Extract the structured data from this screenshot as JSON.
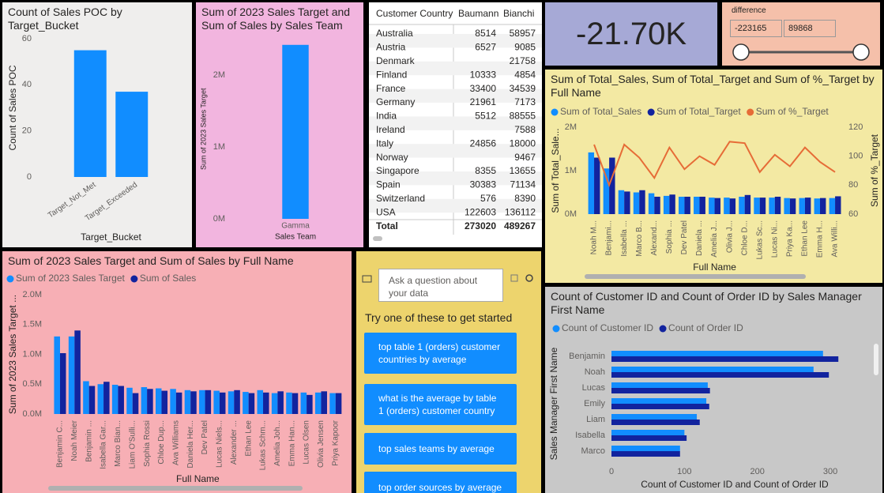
{
  "chart_data": [
    {
      "type": "bar",
      "title": "Count of Sales POC by Target_Bucket",
      "categories": [
        "Target_Not_Met",
        "Target_Exceeded"
      ],
      "values": [
        55,
        37
      ],
      "color": "#118dff",
      "ylim": [
        0,
        60
      ],
      "yticks": [
        0,
        20,
        40,
        60
      ],
      "xlabel": "Target_Bucket",
      "ylabel": "Count of Sales POC"
    },
    {
      "type": "bar",
      "title": "Sum of 2023 Sales Target and Sum of Sales by Sales Team",
      "categories": [
        "Gamma"
      ],
      "values": [
        2420000
      ],
      "color": "#118dff",
      "ylim": [
        0,
        2500000
      ],
      "yticks": [
        {
          "value": 0,
          "label": "0M"
        },
        {
          "value": 1000000,
          "label": "1M"
        },
        {
          "value": 2000000,
          "label": "2M"
        }
      ],
      "xlabel": "Sales Team",
      "ylabel": "Sum of 2023 Sales Target"
    },
    {
      "type": "bar",
      "title": "Sum of Total_Sales, Sum of Total_Target and Sum of %_Target by Full Name",
      "categories": [
        "Noah M...",
        "Benjami...",
        "Isabella ...",
        "Marco B...",
        "Alexand...",
        "Sophia ...",
        "Dev Patel",
        "Daniela ...",
        "Amelia J...",
        "Olivia J...",
        "Chloe D...",
        "Lukas Sc...",
        "Lucas Ni...",
        "Priya Ka...",
        "Ethan Lee",
        "Emma H...",
        "Ava Willi..."
      ],
      "series": [
        {
          "name": "Sum of Total_Sales",
          "color": "#118dff",
          "values": [
            1420000,
            1050000,
            550000,
            500000,
            480000,
            420000,
            400000,
            400000,
            380000,
            380000,
            400000,
            380000,
            380000,
            370000,
            370000,
            360000,
            370000
          ]
        },
        {
          "name": "Sum of Total_Target",
          "color": "#12239e",
          "values": [
            1300000,
            1300000,
            520000,
            550000,
            400000,
            450000,
            400000,
            400000,
            370000,
            360000,
            440000,
            380000,
            400000,
            360000,
            380000,
            370000,
            410000
          ]
        },
        {
          "name": "Sum of %_Target",
          "color": "#e66c37",
          "axis": "y2",
          "values": [
            108,
            80,
            108,
            99,
            85,
            106,
            91,
            100,
            94,
            110,
            109,
            89,
            101,
            93,
            106,
            96,
            89
          ]
        }
      ],
      "ylim": [
        0,
        2000000
      ],
      "yticks": [
        {
          "value": 0,
          "label": "0M"
        },
        {
          "value": 1000000,
          "label": "1M"
        },
        {
          "value": 2000000,
          "label": "2M"
        }
      ],
      "y2lim": [
        60,
        120
      ],
      "y2ticks": [
        60,
        80,
        100,
        120
      ],
      "xlabel": "Full Name",
      "ylabel": "Sum of Total_Sale...",
      "y2label": "Sum of %_Target"
    },
    {
      "type": "bar",
      "title": "Sum of 2023 Sales Target and Sum of Sales by Full Name",
      "categories": [
        "Benjamin C...",
        "Noah Meier",
        "Benjamin ...",
        "Isabella Gar...",
        "Marco Bian...",
        "Liam O'Sulli...",
        "Sophia Rossi",
        "Chloe Dup...",
        "Ava Williams",
        "Daniela Her...",
        "Dev Patel",
        "Lucas Niels...",
        "Alexander ...",
        "Ethan Lee",
        "Lukas Schm...",
        "Amelia Joh...",
        "Emma Han...",
        "Lucas Olsen",
        "Olivia Jensen",
        "Priya Kapoor"
      ],
      "series": [
        {
          "name": "Sum of 2023 Sales Target",
          "color": "#118dff",
          "values": [
            1300000,
            1300000,
            550000,
            500000,
            490000,
            440000,
            450000,
            430000,
            420000,
            400000,
            400000,
            390000,
            380000,
            370000,
            400000,
            350000,
            360000,
            360000,
            360000,
            350000
          ]
        },
        {
          "name": "Sum of Sales",
          "color": "#12239e",
          "values": [
            1020000,
            1400000,
            470000,
            540000,
            470000,
            350000,
            420000,
            390000,
            360000,
            380000,
            400000,
            360000,
            400000,
            350000,
            360000,
            380000,
            350000,
            320000,
            380000,
            350000
          ]
        }
      ],
      "ylim": [
        0,
        2000000
      ],
      "yticks": [
        {
          "value": 0,
          "label": "0.0M"
        },
        {
          "value": 500000,
          "label": "0.5M"
        },
        {
          "value": 1000000,
          "label": "1.0M"
        },
        {
          "value": 1500000,
          "label": "1.5M"
        },
        {
          "value": 2000000,
          "label": "2.0M"
        }
      ],
      "xlabel": "Full Name",
      "ylabel": "Sum of 2023 Sales Target ..."
    },
    {
      "type": "hbar",
      "title": "Count of Customer ID and Count of Order ID by Sales Manager First Name",
      "categories": [
        "Benjamin",
        "Noah",
        "Lucas",
        "Emily",
        "Liam",
        "Isabella",
        "Marco"
      ],
      "series": [
        {
          "name": "Count of Customer ID",
          "color": "#118dff",
          "values": [
            290,
            277,
            132,
            130,
            117,
            100,
            94
          ]
        },
        {
          "name": "Count of Order ID",
          "color": "#12239e",
          "values": [
            311,
            298,
            135,
            134,
            121,
            103,
            94
          ]
        }
      ],
      "xlim": [
        0,
        340
      ],
      "xticks": [
        0,
        100,
        200,
        300
      ],
      "xlabel": "Count of Customer ID and Count of Order ID",
      "ylabel": "Sales Manager First Name"
    }
  ],
  "table": {
    "columns": [
      "Customer Country",
      "Baumann",
      "Bianchi"
    ],
    "rows": [
      [
        "Australia",
        8514,
        58957
      ],
      [
        "Austria",
        6527,
        9085
      ],
      [
        "Denmark",
        null,
        21758
      ],
      [
        "Finland",
        10333,
        4854
      ],
      [
        "France",
        33400,
        34539
      ],
      [
        "Germany",
        21961,
        7173
      ],
      [
        "India",
        5512,
        88555
      ],
      [
        "Ireland",
        null,
        7588
      ],
      [
        "Italy",
        24856,
        18000
      ],
      [
        "Norway",
        null,
        9467
      ],
      [
        "Singapore",
        8355,
        13655
      ],
      [
        "Spain",
        30383,
        71134
      ],
      [
        "Switzerland",
        576,
        8390
      ],
      [
        "USA",
        122603,
        136112
      ]
    ],
    "total": [
      "Total",
      273020,
      489267
    ]
  },
  "card": {
    "value": "-21.70K"
  },
  "slicer": {
    "title": "difference",
    "min": -223165,
    "max": 89868
  },
  "qna": {
    "placeholder": "Ask a question about your data",
    "prompt": "Try one of these to get started",
    "suggestions": [
      "top table 1 (orders) customer countries by average",
      "what is the average by table 1 (orders) customer country",
      "top sales teams by average",
      "top order sources by average"
    ]
  }
}
